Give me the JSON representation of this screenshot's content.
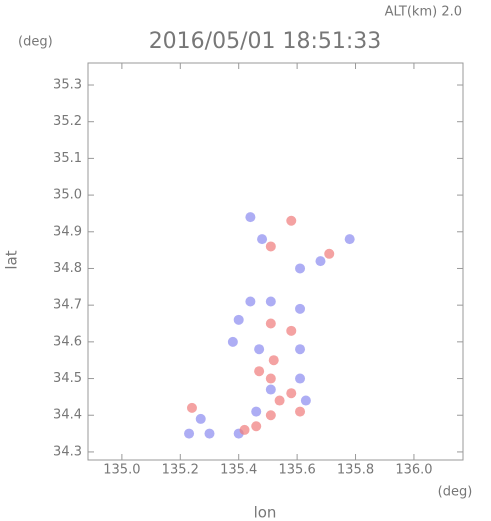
{
  "chart_data": {
    "type": "scatter",
    "title": "2016/05/01 18:51:33",
    "subtitle": "ALT(km) 2.0",
    "xlabel": "lon",
    "ylabel": "lat",
    "xunit": "(deg)",
    "yunit": "(deg)",
    "xlim": [
      134.884,
      136.168
    ],
    "ylim": [
      34.278,
      35.36
    ],
    "xticks": [
      {
        "value": 135.0,
        "label": "135.0"
      },
      135.2,
      135.4,
      135.6,
      135.8,
      {
        "value": 136.0,
        "label": "136.0"
      }
    ],
    "yticks": [
      34.3,
      34.4,
      34.5,
      34.6,
      34.7,
      34.8,
      34.9,
      {
        "value": 35.0,
        "label": "35.0"
      },
      35.1,
      35.2,
      35.3
    ],
    "series": [
      {
        "color": "#8a8af0",
        "x": [
          135.44,
          135.48,
          135.78,
          135.61,
          135.68,
          135.44,
          135.51,
          135.61,
          135.4,
          135.47,
          135.61,
          135.51,
          135.61,
          135.46,
          135.27,
          135.23,
          135.3,
          135.4,
          135.63,
          135.38
        ],
        "values": [
          34.94,
          34.88,
          34.88,
          34.8,
          34.82,
          34.71,
          34.71,
          34.69,
          34.66,
          34.58,
          34.58,
          34.47,
          34.5,
          34.41,
          34.39,
          34.35,
          34.35,
          34.35,
          34.44,
          34.6
        ]
      },
      {
        "color": "#f07a7a",
        "x": [
          135.58,
          135.51,
          135.71,
          135.51,
          135.58,
          135.52,
          135.51,
          135.58,
          135.61,
          135.51,
          135.46,
          135.42,
          135.24,
          135.54,
          135.47
        ],
        "values": [
          34.93,
          34.86,
          34.84,
          34.65,
          34.63,
          34.55,
          34.5,
          34.46,
          34.41,
          34.4,
          34.37,
          34.36,
          34.42,
          34.44,
          34.52
        ]
      }
    ]
  }
}
